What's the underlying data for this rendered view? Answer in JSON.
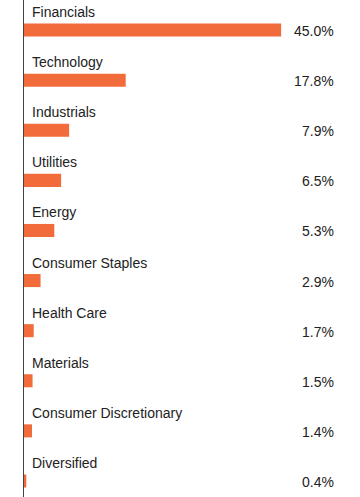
{
  "chart_data": {
    "type": "bar",
    "orientation": "horizontal",
    "categories": [
      "Financials",
      "Technology",
      "Industrials",
      "Utilities",
      "Energy",
      "Consumer Staples",
      "Health Care",
      "Materials",
      "Consumer Discretionary",
      "Diversified"
    ],
    "values": [
      45.0,
      17.8,
      7.9,
      6.5,
      5.3,
      2.9,
      1.7,
      1.5,
      1.4,
      0.4
    ],
    "value_labels": [
      "45.0%",
      "17.8%",
      "7.9%",
      "6.5%",
      "5.3%",
      "2.9%",
      "1.7%",
      "1.5%",
      "1.4%",
      "0.4%"
    ],
    "color": "#f26b3a",
    "xlim": [
      0,
      58.8
    ],
    "data_labels": true,
    "tick_labels": false,
    "grid": false
  }
}
